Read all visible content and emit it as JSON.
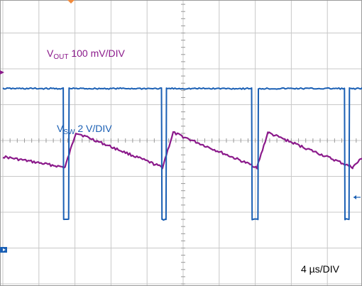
{
  "chart_data": {
    "type": "line",
    "title": "",
    "x_unit_per_div": "4 µs/DIV",
    "divisions": {
      "x": 10,
      "y": 8
    },
    "xlim": [
      0,
      40
    ],
    "x_unit": "µs",
    "grid": true,
    "timebase_label": "4 µs/DIV",
    "series": [
      {
        "name": "VOUT",
        "label_main": "V",
        "label_sub": "OUT",
        "label_scale": "100 mV/DIV",
        "color": "#8b1a8b",
        "x": [
          0.0,
          6.9,
          8.1,
          17.7,
          18.9,
          28.2,
          29.4,
          38.8,
          40.0
        ],
        "y": [
          3.55,
          3.25,
          4.22,
          3.25,
          4.22,
          3.25,
          4.22,
          3.25,
          3.55
        ]
      },
      {
        "name": "VSW",
        "label_main": "V",
        "label_sub": "SW",
        "label_scale": "2 V/DIV",
        "color": "#1a5fb4",
        "x": [
          0.0,
          6.7,
          6.75,
          7.3,
          7.35,
          17.6,
          17.65,
          18.1,
          18.15,
          27.6,
          27.65,
          28.3,
          28.35,
          37.9,
          37.95,
          38.4,
          38.45,
          40.0
        ],
        "y": [
          5.45,
          5.45,
          1.8,
          1.8,
          5.45,
          5.45,
          1.8,
          1.8,
          5.45,
          5.45,
          1.8,
          1.8,
          5.45,
          5.45,
          1.8,
          1.8,
          5.45,
          5.45
        ]
      }
    ],
    "markers": {
      "trigger_color": "#f08a3c",
      "vout_ref_color": "#8b1a8b",
      "vsw_ref_color": "#1a5fb4"
    }
  }
}
